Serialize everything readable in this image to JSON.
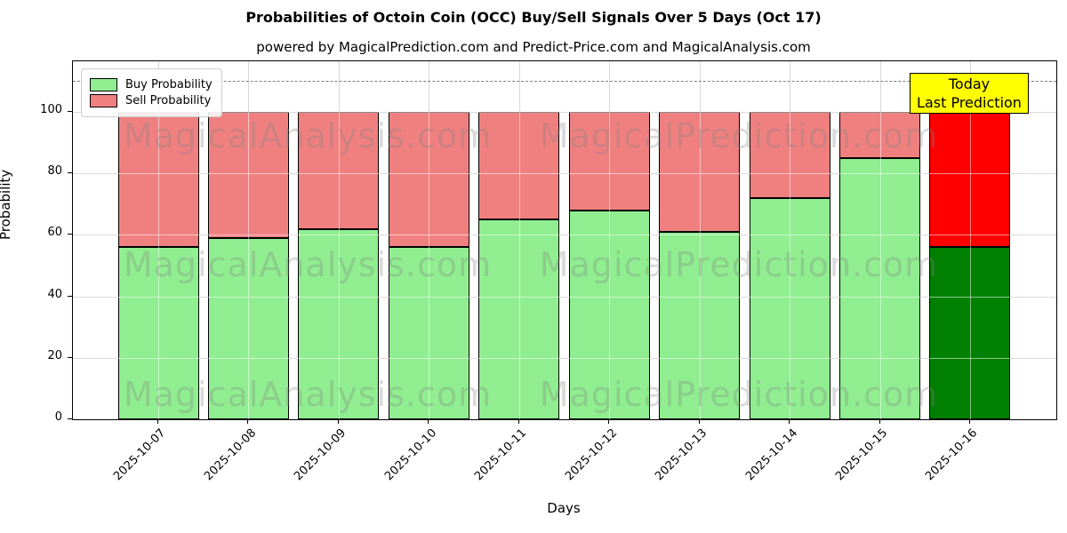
{
  "title": "Probabilities of Octoin Coin (OCC) Buy/Sell Signals Over 5 Days (Oct 17)",
  "subtitle": "powered by MagicalPrediction.com and Predict-Price.com and MagicalAnalysis.com",
  "watermarks": {
    "left_text": "MagicalAnalysis.com",
    "right_text": "MagicalPrediction.com"
  },
  "legend": [
    {
      "label": "Buy Probability",
      "color": "#90EE90"
    },
    {
      "label": "Sell Probability",
      "color": "#F08080"
    }
  ],
  "annotation": {
    "line1": "Today",
    "line2": "Last Prediction",
    "bg_color": "#FFFF00"
  },
  "axes": {
    "ylabel": "Probability",
    "xlabel": "Days",
    "yticks": [
      0,
      20,
      40,
      60,
      80,
      100
    ],
    "ylim": [
      0,
      116.5
    ],
    "dashed_line_y": 110,
    "grid_color": "#b0b0b0",
    "dashed_color": "#7f7f7f"
  },
  "chart_data": {
    "type": "bar",
    "stacked": true,
    "title": "Probabilities of Octoin Coin (OCC) Buy/Sell Signals Over 5 Days (Oct 17)",
    "xlabel": "Days",
    "ylabel": "Probability",
    "ylim": [
      0,
      116.5
    ],
    "grid": true,
    "legend_position": "upper left",
    "categories": [
      "2025-10-07",
      "2025-10-08",
      "2025-10-09",
      "2025-10-10",
      "2025-10-11",
      "2025-10-12",
      "2025-10-13",
      "2025-10-14",
      "2025-10-15",
      "2025-10-16"
    ],
    "series": [
      {
        "name": "Buy Probability",
        "color": "#90EE90",
        "today_color": "#008000",
        "values": [
          56,
          59,
          62,
          56,
          65,
          68,
          61,
          72,
          85,
          56
        ]
      },
      {
        "name": "Sell Probability",
        "color": "#F08080",
        "today_color": "#FF0000",
        "values": [
          44,
          41,
          38,
          44,
          35,
          32,
          39,
          28,
          15,
          44
        ]
      }
    ],
    "today_index": 9,
    "today_annotation": "Today Last Prediction"
  }
}
